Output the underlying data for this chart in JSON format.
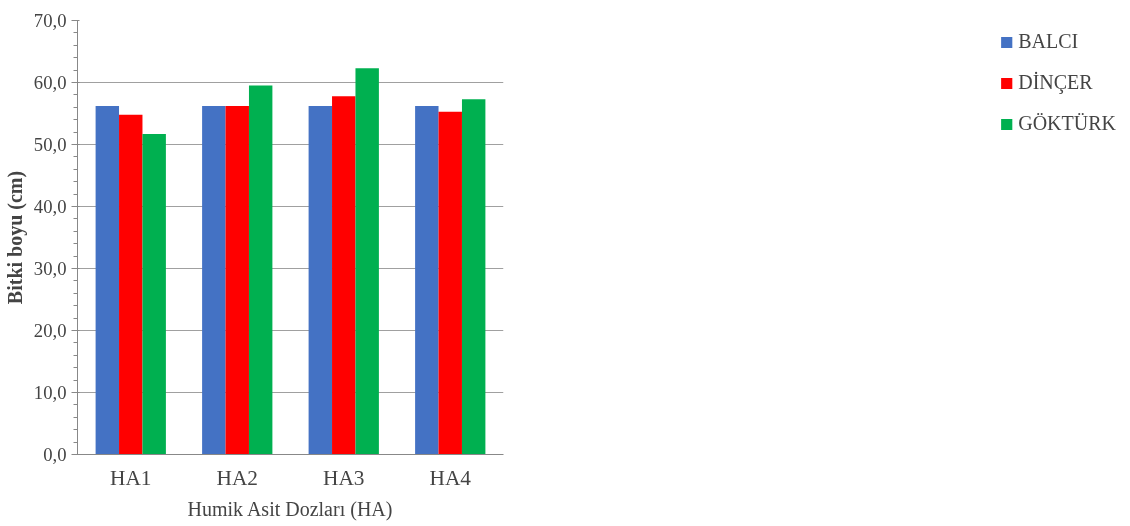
{
  "chart_data": {
    "type": "bar",
    "xlabel": "Humik Asit Dozları (HA)",
    "ylabel": "Bitki boyu (cm)",
    "categories": [
      "HA1",
      "HA2",
      "HA3",
      "HA4"
    ],
    "series": [
      {
        "name": "BALCI",
        "color": "#4472c4",
        "values": [
          56.2,
          56.2,
          56.2,
          56.2
        ]
      },
      {
        "name": "DİNÇER",
        "color": "#ff0000",
        "values": [
          54.8,
          56.2,
          57.8,
          55.3
        ]
      },
      {
        "name": "GÖKTÜRK",
        "color": "#00b050",
        "values": [
          51.7,
          59.5,
          62.3,
          57.3
        ]
      }
    ],
    "ylim": [
      0,
      70
    ],
    "yticks": [
      {
        "value": 0,
        "label": "0,0"
      },
      {
        "value": 10,
        "label": "10,0"
      },
      {
        "value": 20,
        "label": "20,0"
      },
      {
        "value": 30,
        "label": "30,0"
      },
      {
        "value": 40,
        "label": "40,0"
      },
      {
        "value": 50,
        "label": "50,0"
      },
      {
        "value": 60,
        "label": "60,0"
      },
      {
        "value": 70,
        "label": "70,0"
      }
    ],
    "grid": "y",
    "legend": "right"
  }
}
